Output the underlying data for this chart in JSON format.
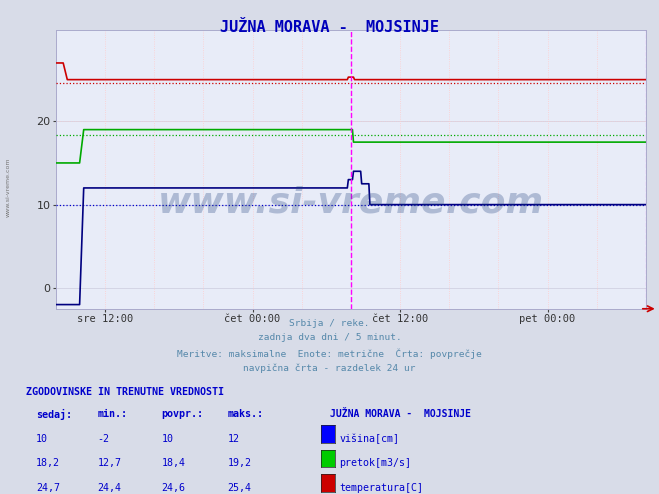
{
  "title": "JUŽNA MORAVA -  MOJSINJE",
  "bg_color": "#d8dce8",
  "plot_bg_color": "#e8ecf8",
  "x_labels": [
    "sre 12:00",
    "čet 00:00",
    "čet 12:00",
    "pet 00:00"
  ],
  "x_tick_pos": [
    0.25,
    1.0,
    1.75,
    2.5
  ],
  "ylim": [
    -2.5,
    31
  ],
  "yticks": [
    0,
    10,
    20
  ],
  "avg_values": [
    10.0,
    18.4,
    24.6
  ],
  "avg_colors": [
    "#0000cc",
    "#00aa00",
    "#cc0000"
  ],
  "line_colors": [
    "#000080",
    "#00aa00",
    "#cc0000"
  ],
  "watermark": "www.si-vreme.com",
  "watermark_color": "#1a3a7a",
  "subtitle_lines": [
    "Srbija / reke.",
    "zadnja dva dni / 5 minut.",
    "Meritve: maksimalne  Enote: metrične  Črta: povprečje",
    "navpična črta - razdelek 24 ur"
  ],
  "table_header": "ZGODOVINSKE IN TRENUTNE VREDNOSTI",
  "col_headers": [
    "sedaj:",
    "min.:",
    "povpr.:",
    "maks.:"
  ],
  "rows_str": [
    [
      "10",
      "-2",
      "10",
      "12"
    ],
    [
      "18,2",
      "12,7",
      "18,4",
      "19,2"
    ],
    [
      "24,7",
      "24,4",
      "24,6",
      "25,4"
    ]
  ],
  "legend_labels": [
    "višina[cm]",
    "pretok[m3/s]",
    "temperatura[C]"
  ],
  "legend_colors": [
    "#0000ff",
    "#00cc00",
    "#cc0000"
  ],
  "station_label": "JUŽNA MORAVA -  MOJSINJE",
  "sidebar_text": "www.si-vreme.com",
  "vline_pink": "#ffaaaa",
  "vline_magenta": "#ff00ff",
  "hgrid_color": "#ccccdd",
  "vgrid_color": "#ffcccc"
}
